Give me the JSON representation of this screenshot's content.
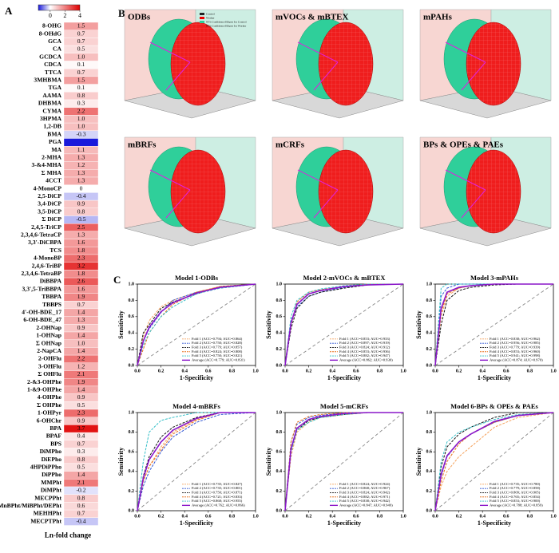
{
  "panel_labels": {
    "b": "B",
    "c": "C"
  },
  "panel_b": [
    {
      "title": "ODBs",
      "legend": [
        "Control",
        "Worker",
        "95% Confidence Ellipse for Control",
        "95% Confidence Ellipse for Worker"
      ]
    },
    {
      "title": "mVOCs & mBTEX"
    },
    {
      "title": "mPAHs"
    },
    {
      "title": "mBRFs"
    },
    {
      "title": "mCRFs"
    },
    {
      "title": "BPs & OPEs & PAEs"
    }
  ],
  "chart_data": [
    {
      "type": "heatmap",
      "panel_label": "A",
      "xlabel": "Ln-fold change",
      "clim": [
        -1.6,
        4
      ],
      "cticks": [
        0,
        2,
        4
      ],
      "colors": [
        "#1a1adb",
        "#ffffff",
        "#e00000"
      ],
      "categories": [
        "8-OHG",
        "8-OHdG",
        "GCA",
        "CA",
        "GCDCA",
        "CDCA",
        "TTCA",
        "3MHBMA",
        "TGA",
        "AAMA",
        "DHBMA",
        "CYMA",
        "3HPMA",
        "1,2-DB",
        "BMA",
        "PGA",
        "MA",
        "2-MHA",
        "3-&4-MHA",
        "Σ MHA",
        "4CCT",
        "4-MonoCP",
        "2,5-DiCP",
        "3,4-DiCP",
        "3,5-DiCP",
        "Σ DiCP",
        "2,4,5-TriCP",
        "2,3,4,6-TetraCP",
        "3,3'-DiCBPA",
        "TCS",
        "4-MonoBP",
        "2,4,6-TriBP",
        "2,3,4,6-TetraBP",
        "DiBBPA",
        "3,3',5-TriBBPA",
        "TBBPA",
        "TBBPS",
        "4'-OH-BDE_17",
        "6-OH-BDE_47",
        "2-OHNap",
        "1-OHNap",
        "Σ OHNap",
        "2-NapCA",
        "2-OHFlu",
        "3-OHFlu",
        "Σ OHFlu",
        "2-&3-OHPhe",
        "1-&9-OHPhe",
        "4-OHPhe",
        "Σ OHPhe",
        "1-OHPyr",
        "6-OHChr",
        "BPA",
        "BPAF",
        "BPS",
        "DiMPho",
        "DiEPho",
        "4HPDiPPho",
        "DiPPho",
        "MMPht",
        "DiMPht",
        "MECPPht",
        "MnBPht/MiBPht/DEPht",
        "MEHHPht",
        "MECPTPht"
      ],
      "values": [
        1.5,
        0.7,
        0.7,
        0.5,
        1.0,
        0.1,
        0.7,
        1.5,
        0.1,
        0.8,
        0.3,
        2.2,
        1.0,
        1.0,
        -0.3,
        -1.6,
        1.1,
        1.3,
        1.2,
        1.3,
        1.3,
        0,
        -0.4,
        0.9,
        0.8,
        -0.5,
        2.5,
        1.3,
        1.6,
        1.8,
        2.3,
        3.2,
        1.8,
        2.6,
        1.6,
        1.9,
        0.7,
        1.4,
        1.3,
        0.9,
        1.4,
        1.0,
        1.4,
        2.2,
        1.2,
        2.1,
        1.9,
        1.4,
        0.9,
        0.5,
        2.3,
        0.9,
        3.7,
        0.4,
        0.7,
        0.3,
        0.8,
        0.5,
        1.4,
        2.1,
        -0.2,
        0.8,
        0.6,
        0.7,
        -0.4
      ],
      "value_labels": [
        "1.5",
        "0.7",
        "0.7",
        "0.5",
        "1.0",
        "0.1",
        "0.7",
        "1.5",
        "0.1",
        "0.8",
        "0.3",
        "2.2",
        "1.0",
        "1.0",
        "-0.3",
        null,
        "1.1",
        "1.3",
        "1.2",
        "1.3",
        "1.3",
        "0",
        "-0.4",
        "0.9",
        "0.8",
        "-0.5",
        "2.5",
        "1.3",
        "1.6",
        "1.8",
        "2.3",
        "3.2",
        "1.8",
        "2.6",
        "1.6",
        "1.9",
        "0.7",
        "1.4",
        "1.3",
        "0.9",
        "1.4",
        "1.0",
        "1.4",
        "2.2",
        "1.2",
        "2.1",
        "1.9",
        "1.4",
        "0.9",
        "0.5",
        "2.3",
        "0.9",
        "3.7",
        "0.4",
        "0.7",
        "0.3",
        "0.8",
        "0.5",
        "1.4",
        "2.1",
        "-0.2",
        "0.8",
        "0.6",
        "0.7",
        "-0.4"
      ]
    },
    {
      "type": "roc",
      "title": "Model 1-ODBs",
      "xlabel": "1-Specificity",
      "ylabel": "Sensitivity",
      "legend": "lower right",
      "xlim": [
        0,
        1
      ],
      "ylim": [
        0,
        1
      ],
      "xticks": [
        {
          "value": 0,
          "label": "0.0"
        },
        0.2,
        0.4,
        0.6,
        0.8,
        {
          "value": 1,
          "label": "1.0"
        }
      ],
      "yticks": [
        {
          "value": 0,
          "label": "0.0"
        },
        0.2,
        0.4,
        0.6,
        0.8,
        {
          "value": 1,
          "label": "1.0"
        }
      ],
      "x": [
        0,
        0.05,
        0.1,
        0.2,
        0.3,
        0.5,
        0.7,
        1
      ],
      "series": [
        {
          "name": "Fold 1  (ACC=0.794; AUC=0.864)",
          "color": "#f5a25d",
          "line": "dashed",
          "values": [
            0,
            0.35,
            0.55,
            0.72,
            0.8,
            0.9,
            0.97,
            1
          ]
        },
        {
          "name": "Fold 2  (ACC=0.750; AUC=0.828)",
          "color": "#2f55d4",
          "line": "dashed",
          "values": [
            0,
            0.3,
            0.45,
            0.65,
            0.8,
            0.9,
            0.95,
            1
          ]
        },
        {
          "name": "Fold 3  (ACC=0.779; AUC=0.857)",
          "color": "#111111",
          "line": "dashed",
          "values": [
            0,
            0.4,
            0.5,
            0.7,
            0.78,
            0.88,
            0.97,
            1
          ]
        },
        {
          "name": "Fold 4  (ACC=0.824; AUC=0.808)",
          "color": "#e8711c",
          "line": "dashed",
          "values": [
            0,
            0.2,
            0.4,
            0.6,
            0.75,
            0.9,
            0.97,
            1
          ]
        },
        {
          "name": "Fold 5  (ACC=0.750; AUC=0.821)",
          "color": "#35c0c8",
          "line": "dashed",
          "values": [
            0,
            0.25,
            0.4,
            0.6,
            0.72,
            0.88,
            0.95,
            1
          ]
        },
        {
          "name": "Average (ACC=0.779; AUC=0.831)",
          "color": "#8a17c9",
          "line": "solid",
          "values": [
            0,
            0.3,
            0.47,
            0.66,
            0.77,
            0.89,
            0.96,
            1
          ]
        }
      ]
    },
    {
      "type": "roc",
      "title": "Model 2-mVOCs & mBTEX",
      "xlabel": "1-Specificity",
      "ylabel": "Sensitivity",
      "legend": "lower right",
      "xlim": [
        0,
        1
      ],
      "ylim": [
        0,
        1
      ],
      "xticks": [
        {
          "value": 0,
          "label": "0.0"
        },
        0.2,
        0.4,
        0.6,
        0.8,
        {
          "value": 1,
          "label": "1.0"
        }
      ],
      "yticks": [
        {
          "value": 0,
          "label": "0.0"
        },
        0.2,
        0.4,
        0.6,
        0.8,
        {
          "value": 1,
          "label": "1.0"
        }
      ],
      "x": [
        0,
        0.05,
        0.1,
        0.2,
        0.3,
        0.5,
        0.7,
        1
      ],
      "series": [
        {
          "name": "Fold 1  (ACC=0.853; AUC=0.933)",
          "color": "#f5a25d",
          "line": "dashed",
          "values": [
            0,
            0.5,
            0.75,
            0.88,
            0.92,
            0.97,
            1,
            1
          ]
        },
        {
          "name": "Fold 2  (ACC=0.897; AUC=0.919)",
          "color": "#2f55d4",
          "line": "dashed",
          "values": [
            0,
            0.55,
            0.72,
            0.85,
            0.9,
            0.96,
            0.99,
            1
          ]
        },
        {
          "name": "Fold 3  (ACC=0.824; AUC=0.912)",
          "color": "#111111",
          "line": "dashed",
          "values": [
            0,
            0.45,
            0.7,
            0.85,
            0.9,
            0.95,
            0.99,
            1
          ]
        },
        {
          "name": "Fold 4  (ACC=0.853; AUC=0.936)",
          "color": "#e8711c",
          "line": "dashed",
          "values": [
            0,
            0.5,
            0.78,
            0.9,
            0.93,
            0.97,
            1,
            1
          ]
        },
        {
          "name": "Fold 5  (ACC=0.882; AUC=0.947)",
          "color": "#35c0c8",
          "line": "dashed",
          "values": [
            0,
            0.6,
            0.8,
            0.9,
            0.94,
            0.98,
            1,
            1
          ]
        },
        {
          "name": "Average (ACC=0.862; AUC=0.930)",
          "color": "#8a17c9",
          "line": "solid",
          "values": [
            0,
            0.52,
            0.75,
            0.88,
            0.92,
            0.97,
            0.99,
            1
          ]
        }
      ]
    },
    {
      "type": "roc",
      "title": "Model 3-mPAHs",
      "xlabel": "1-Specificity",
      "ylabel": "Sensitivity",
      "legend": "lower right",
      "xlim": [
        0,
        1
      ],
      "ylim": [
        0,
        1
      ],
      "xticks": [
        {
          "value": 0,
          "label": "0.0"
        },
        0.2,
        0.4,
        0.6,
        0.8,
        {
          "value": 1,
          "label": "1.0"
        }
      ],
      "yticks": [
        {
          "value": 0,
          "label": "0.0"
        },
        0.2,
        0.4,
        0.6,
        0.8,
        {
          "value": 1,
          "label": "1.0"
        }
      ],
      "x": [
        0,
        0.05,
        0.1,
        0.2,
        0.3,
        0.5,
        0.7,
        1
      ],
      "series": [
        {
          "name": "Fold 1  (ACC=0.838; AUC=0.962)",
          "color": "#f5a25d",
          "line": "dashed",
          "values": [
            0,
            0.6,
            0.85,
            0.95,
            0.98,
            1,
            1,
            1
          ]
        },
        {
          "name": "Fold 2  (ACC=0.956; AUC=0.985)",
          "color": "#2f55d4",
          "line": "dashed",
          "values": [
            0,
            0.85,
            0.95,
            1,
            1,
            1,
            1,
            1
          ]
        },
        {
          "name": "Fold 3  (ACC=0.779; AUC=0.939)",
          "color": "#111111",
          "line": "dashed",
          "values": [
            0,
            0.5,
            0.8,
            0.92,
            0.96,
            0.99,
            1,
            1
          ]
        },
        {
          "name": "Fold 4  (ACC=0.853; AUC=0.960)",
          "color": "#e8711c",
          "line": "dashed",
          "values": [
            0,
            0.65,
            0.88,
            0.95,
            0.98,
            1,
            1,
            1
          ]
        },
        {
          "name": "Fold 5  (ACC=0.941; AUC=0.998)",
          "color": "#35c0c8",
          "line": "dashed",
          "values": [
            0,
            0.95,
            1,
            1,
            1,
            1,
            1,
            1
          ]
        },
        {
          "name": "Average (ACC=0.874; AUC=0.970)",
          "color": "#8a17c9",
          "line": "solid",
          "values": [
            0,
            0.7,
            0.9,
            0.96,
            0.98,
            1,
            1,
            1
          ]
        }
      ]
    },
    {
      "type": "roc",
      "title": "Model 4-mBRFs",
      "xlabel": "1-Specificity",
      "ylabel": "Sensitivity",
      "legend": "lower right",
      "xlim": [
        0,
        1
      ],
      "ylim": [
        0,
        1
      ],
      "xticks": [
        {
          "value": 0,
          "label": "0.0"
        },
        0.2,
        0.4,
        0.6,
        0.8,
        {
          "value": 1,
          "label": "1.0"
        }
      ],
      "yticks": [
        {
          "value": 0,
          "label": "0.0"
        },
        0.2,
        0.4,
        0.6,
        0.8,
        {
          "value": 1,
          "label": "1.0"
        }
      ],
      "x": [
        0,
        0.05,
        0.1,
        0.2,
        0.3,
        0.5,
        0.7,
        1
      ],
      "series": [
        {
          "name": "Fold 1  (ACC=0.735; AUC=0.827)",
          "color": "#f5a25d",
          "line": "dashed",
          "values": [
            0,
            0.3,
            0.45,
            0.65,
            0.8,
            0.93,
            1,
            1
          ]
        },
        {
          "name": "Fold 2  (ACC=0.735; AUC=0.801)",
          "color": "#2f55d4",
          "line": "dashed",
          "values": [
            0,
            0.25,
            0.4,
            0.6,
            0.75,
            0.9,
            0.98,
            1
          ]
        },
        {
          "name": "Fold 3  (ACC=0.750; AUC=0.871)",
          "color": "#111111",
          "line": "dashed",
          "values": [
            0,
            0.35,
            0.55,
            0.75,
            0.85,
            0.95,
            1,
            1
          ]
        },
        {
          "name": "Fold 4  (ACC=0.721; AUC=0.833)",
          "color": "#e8711c",
          "line": "dashed",
          "values": [
            0,
            0.3,
            0.45,
            0.62,
            0.78,
            0.92,
            1,
            1
          ]
        },
        {
          "name": "Fold 5  (ACC=0.868; AUC=0.955)",
          "color": "#35c0c8",
          "line": "dashed",
          "values": [
            0,
            0.5,
            0.8,
            0.92,
            0.95,
            1,
            1,
            1
          ]
        },
        {
          "name": "Average (ACC=0.762; AUC=0.866)",
          "color": "#8a17c9",
          "line": "solid",
          "values": [
            0,
            0.33,
            0.52,
            0.7,
            0.82,
            0.94,
            1,
            1
          ]
        }
      ]
    },
    {
      "type": "roc",
      "title": "Model 5-mCRFs",
      "xlabel": "1-Specificity",
      "ylabel": "Sensitivity",
      "legend": "lower right",
      "xlim": [
        0,
        1
      ],
      "ylim": [
        0,
        1
      ],
      "xticks": [
        {
          "value": 0,
          "label": "0.0"
        },
        0.2,
        0.4,
        0.6,
        0.8,
        {
          "value": 1,
          "label": "1.0"
        }
      ],
      "yticks": [
        {
          "value": 0,
          "label": "0.0"
        },
        0.2,
        0.4,
        0.6,
        0.8,
        {
          "value": 1,
          "label": "1.0"
        }
      ],
      "x": [
        0,
        0.05,
        0.1,
        0.2,
        0.3,
        0.5,
        0.7,
        1
      ],
      "series": [
        {
          "name": "Fold 1  (ACC=0.824; AUC=0.924)",
          "color": "#f5a25d",
          "line": "dashed",
          "values": [
            0,
            0.55,
            0.8,
            0.9,
            0.95,
            0.98,
            1,
            1
          ]
        },
        {
          "name": "Fold 2  (ACC=0.868; AUC=0.967)",
          "color": "#2f55d4",
          "line": "dashed",
          "values": [
            0,
            0.7,
            0.88,
            0.95,
            0.97,
            1,
            1,
            1
          ]
        },
        {
          "name": "Fold 3  (ACC=0.824; AUC=0.942)",
          "color": "#111111",
          "line": "dashed",
          "values": [
            0,
            0.6,
            0.82,
            0.92,
            0.95,
            0.98,
            1,
            1
          ]
        },
        {
          "name": "Fold 4  (ACC=0.882; AUC=0.971)",
          "color": "#e8711c",
          "line": "dashed",
          "values": [
            0,
            0.7,
            0.9,
            0.96,
            0.98,
            1,
            1,
            1
          ]
        },
        {
          "name": "Fold 5  (ACC=0.838; AUC=0.942)",
          "color": "#35c0c8",
          "line": "dashed",
          "values": [
            0,
            0.6,
            0.82,
            0.9,
            0.95,
            0.98,
            1,
            1
          ]
        },
        {
          "name": "Average (ACC=0.847; AUC=0.949)",
          "color": "#8a17c9",
          "line": "solid",
          "values": [
            0,
            0.63,
            0.84,
            0.93,
            0.96,
            0.99,
            1,
            1
          ]
        }
      ]
    },
    {
      "type": "roc",
      "title": "Model 6-BPs & OPEs & PAEs",
      "xlabel": "1-Specificity",
      "ylabel": "Sensitivity",
      "legend": "lower right",
      "xlim": [
        0,
        1
      ],
      "ylim": [
        0,
        1
      ],
      "xticks": [
        {
          "value": 0,
          "label": "0.0"
        },
        0.2,
        0.4,
        0.6,
        0.8,
        {
          "value": 1,
          "label": "1.0"
        }
      ],
      "yticks": [
        {
          "value": 0,
          "label": "0.0"
        },
        0.2,
        0.4,
        0.6,
        0.8,
        {
          "value": 1,
          "label": "1.0"
        }
      ],
      "x": [
        0,
        0.05,
        0.1,
        0.2,
        0.3,
        0.5,
        0.7,
        1
      ],
      "series": [
        {
          "name": "Fold 1  (ACC=0.735; AUC=0.780)",
          "color": "#f5a25d",
          "line": "dashed",
          "values": [
            0,
            0.25,
            0.4,
            0.55,
            0.65,
            0.85,
            0.95,
            1
          ]
        },
        {
          "name": "Fold 2  (ACC=0.779; AUC=0.858)",
          "color": "#2f55d4",
          "line": "dashed",
          "values": [
            0,
            0.35,
            0.55,
            0.7,
            0.78,
            0.9,
            0.97,
            1
          ]
        },
        {
          "name": "Fold 3  (ACC=0.809; AUC=0.905)",
          "color": "#111111",
          "line": "dashed",
          "values": [
            0,
            0.45,
            0.65,
            0.78,
            0.85,
            0.95,
            1,
            1
          ]
        },
        {
          "name": "Fold 4  (ACC=0.765; AUC=0.854)",
          "color": "#e8711c",
          "line": "dashed",
          "values": [
            0,
            0.3,
            0.5,
            0.68,
            0.78,
            0.9,
            0.97,
            1
          ]
        },
        {
          "name": "Fold 5  (ACC=0.853; AUC=0.900)",
          "color": "#35c0c8",
          "line": "dashed",
          "values": [
            0,
            0.5,
            0.7,
            0.8,
            0.85,
            0.93,
            0.98,
            1
          ]
        },
        {
          "name": "Average (ACC=0.788; AUC=0.859)",
          "color": "#8a17c9",
          "line": "solid",
          "values": [
            0,
            0.37,
            0.56,
            0.7,
            0.78,
            0.91,
            0.97,
            1
          ]
        }
      ]
    }
  ]
}
